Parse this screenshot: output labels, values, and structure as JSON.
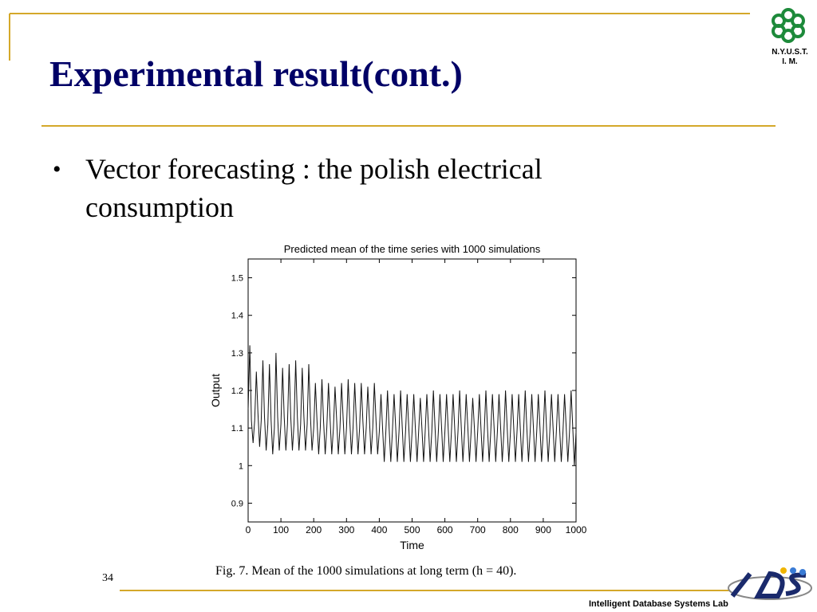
{
  "slide": {
    "title": "Experimental result(cont.)",
    "bullet": "Vector forecasting : the polish electrical consumption",
    "logo_lines": [
      "N.Y.U.S.T.",
      "I. M."
    ],
    "caption": "Fig. 7.  Mean of the 1000 simulations at long term (h = 40).",
    "page_number": "34",
    "footer": "Intelligent Database Systems Lab"
  },
  "chart_data": {
    "type": "line",
    "title": "Predicted mean of the time series with 1000 simulations",
    "x_label": "Time",
    "y_label": "Output",
    "color": "#111111",
    "xlim": [
      0,
      1000
    ],
    "ylim": [
      0.85,
      1.55
    ],
    "xticks": [
      0,
      100,
      200,
      300,
      400,
      500,
      600,
      700,
      800,
      900,
      1000
    ],
    "yticks": [
      0.9,
      1,
      1.1,
      1.2,
      1.3,
      1.4,
      1.5
    ],
    "x": [
      0,
      5,
      10,
      15,
      20,
      25,
      30,
      35,
      40,
      45,
      50,
      55,
      60,
      65,
      70,
      75,
      80,
      85,
      90,
      95,
      100,
      105,
      110,
      115,
      120,
      125,
      130,
      135,
      140,
      145,
      150,
      155,
      160,
      165,
      170,
      175,
      180,
      185,
      190,
      195,
      200,
      205,
      210,
      215,
      220,
      225,
      230,
      235,
      240,
      245,
      250,
      255,
      260,
      265,
      270,
      275,
      280,
      285,
      290,
      295,
      300,
      305,
      310,
      315,
      320,
      325,
      330,
      335,
      340,
      345,
      350,
      355,
      360,
      365,
      370,
      375,
      380,
      385,
      390,
      395,
      400,
      405,
      410,
      415,
      420,
      425,
      430,
      435,
      440,
      445,
      450,
      455,
      460,
      465,
      470,
      475,
      480,
      485,
      490,
      495,
      500,
      505,
      510,
      515,
      520,
      525,
      530,
      535,
      540,
      545,
      550,
      555,
      560,
      565,
      570,
      575,
      580,
      585,
      590,
      595,
      600,
      605,
      610,
      615,
      620,
      625,
      630,
      635,
      640,
      645,
      650,
      655,
      660,
      665,
      670,
      675,
      680,
      685,
      690,
      695,
      700,
      705,
      710,
      715,
      720,
      725,
      730,
      735,
      740,
      745,
      750,
      755,
      760,
      765,
      770,
      775,
      780,
      785,
      790,
      795,
      800,
      805,
      810,
      815,
      820,
      825,
      830,
      835,
      840,
      845,
      850,
      855,
      860,
      865,
      870,
      875,
      880,
      885,
      890,
      895,
      900,
      905,
      910,
      915,
      920,
      925,
      930,
      935,
      940,
      945,
      950,
      955,
      960,
      965,
      970,
      975,
      980,
      985,
      990,
      995,
      1000
    ],
    "values": [
      1.15,
      1.32,
      1.12,
      1.06,
      1.12,
      1.25,
      1.14,
      1.05,
      1.12,
      1.28,
      1.13,
      1.04,
      1.11,
      1.27,
      1.12,
      1.03,
      1.1,
      1.3,
      1.13,
      1.04,
      1.11,
      1.26,
      1.13,
      1.04,
      1.11,
      1.27,
      1.13,
      1.04,
      1.11,
      1.28,
      1.13,
      1.04,
      1.11,
      1.26,
      1.13,
      1.04,
      1.11,
      1.27,
      1.13,
      1.04,
      1.1,
      1.22,
      1.12,
      1.03,
      1.1,
      1.23,
      1.12,
      1.03,
      1.1,
      1.22,
      1.12,
      1.03,
      1.1,
      1.21,
      1.12,
      1.03,
      1.1,
      1.22,
      1.12,
      1.03,
      1.1,
      1.23,
      1.12,
      1.03,
      1.1,
      1.22,
      1.12,
      1.03,
      1.1,
      1.22,
      1.12,
      1.03,
      1.1,
      1.21,
      1.12,
      1.03,
      1.1,
      1.22,
      1.12,
      1.03,
      1.09,
      1.19,
      1.1,
      1.01,
      1.09,
      1.2,
      1.1,
      1.01,
      1.09,
      1.19,
      1.1,
      1.01,
      1.09,
      1.2,
      1.1,
      1.01,
      1.09,
      1.19,
      1.1,
      1.01,
      1.09,
      1.19,
      1.1,
      1.01,
      1.09,
      1.18,
      1.1,
      1.01,
      1.09,
      1.19,
      1.1,
      1.01,
      1.09,
      1.2,
      1.1,
      1.01,
      1.09,
      1.19,
      1.1,
      1.01,
      1.09,
      1.19,
      1.1,
      1.01,
      1.09,
      1.19,
      1.1,
      1.01,
      1.09,
      1.2,
      1.1,
      1.01,
      1.09,
      1.19,
      1.1,
      1.01,
      1.09,
      1.18,
      1.1,
      1.01,
      1.09,
      1.19,
      1.1,
      1.01,
      1.09,
      1.2,
      1.1,
      1.01,
      1.09,
      1.19,
      1.1,
      1.01,
      1.09,
      1.19,
      1.1,
      1.01,
      1.09,
      1.2,
      1.1,
      1.01,
      1.09,
      1.19,
      1.1,
      1.01,
      1.09,
      1.19,
      1.1,
      1.01,
      1.09,
      1.2,
      1.1,
      1.01,
      1.09,
      1.19,
      1.1,
      1.01,
      1.09,
      1.19,
      1.1,
      1.01,
      1.09,
      1.2,
      1.1,
      1.01,
      1.09,
      1.19,
      1.1,
      1.01,
      1.09,
      1.19,
      1.1,
      1.01,
      1.09,
      1.19,
      1.1,
      1.01,
      1.09,
      1.2,
      1.1,
      1.0,
      1.09
    ]
  }
}
